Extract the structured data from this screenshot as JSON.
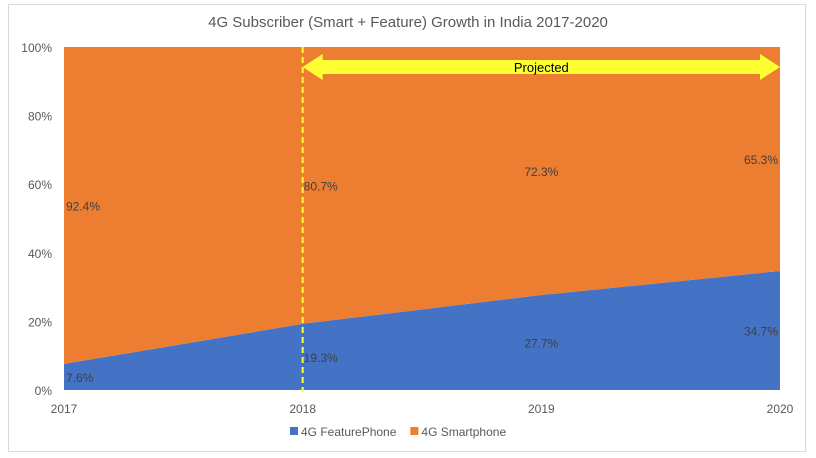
{
  "chart_data": {
    "type": "area",
    "stacked": "percent",
    "title": "4G Subscriber (Smart + Feature) Growth in India 2017-2020",
    "categories": [
      "2017",
      "2018",
      "2019",
      "2020"
    ],
    "series": [
      {
        "name": "4G FeaturePhone",
        "values": [
          7.6,
          19.3,
          27.7,
          34.7
        ],
        "labels": [
          "7.6%",
          "19.3%",
          "27.7%",
          "34.7%"
        ],
        "color": "#4472C4"
      },
      {
        "name": "4G Smartphone",
        "values": [
          92.4,
          80.7,
          72.3,
          65.3
        ],
        "labels": [
          "92.4%",
          "80.7%",
          "72.3%",
          "65.3%"
        ],
        "color": "#ED7D31"
      }
    ],
    "yticks": [
      "0%",
      "20%",
      "40%",
      "60%",
      "80%",
      "100%"
    ],
    "ylim": [
      0,
      100
    ],
    "grid": false,
    "legend": "bottom",
    "annotation": {
      "text": "Projected",
      "from": "2018",
      "to": "2020",
      "color": "#FFFF33",
      "divider_color": "#FFFF33"
    }
  }
}
